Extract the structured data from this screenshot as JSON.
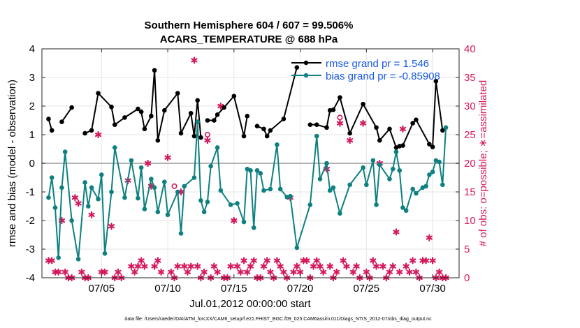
{
  "chart_data": {
    "type": "line",
    "title": "Southern Hemisphere 604 / 607 = 99.506%",
    "subtitle": "ACARS_TEMPERATURE @ 688 hPa",
    "xlabel": "Jul.01,2012 00:00:00 start",
    "ylabel": "rmse and bias (model - observation)",
    "y2label": "# of obs: o=possible; ∗=assimilated",
    "xlim": [
      0.5,
      32.0
    ],
    "ylim": [
      -4,
      4
    ],
    "y2lim": [
      0,
      40
    ],
    "xticks": [
      {
        "x": 5,
        "label": "07/05"
      },
      {
        "x": 10,
        "label": "07/10"
      },
      {
        "x": 15,
        "label": "07/15"
      },
      {
        "x": 20,
        "label": "07/20"
      },
      {
        "x": 25,
        "label": "07/25"
      },
      {
        "x": 30,
        "label": "07/30"
      }
    ],
    "yticks": [
      "-4",
      "-3",
      "-2",
      "-1",
      "0",
      "1",
      "2",
      "3",
      "4"
    ],
    "y2ticks": [
      "0",
      "5",
      "10",
      "15",
      "20",
      "25",
      "30",
      "35",
      "40"
    ],
    "zero_line": 0,
    "colors": {
      "rmse": "#000000",
      "bias": "#0e8080",
      "obs": "#d6195f",
      "legend_text": "#1a5ae6",
      "zero": "#b3b3b3"
    },
    "series": [
      {
        "name": "rmse",
        "legend": "rmse grand pr = 1.546",
        "points": [
          [
            1.0,
            1.55
          ],
          [
            1.25,
            1.15
          ],
          [
            1.75,
            null
          ],
          [
            2.0,
            1.45
          ],
          [
            2.75,
            1.95
          ],
          [
            3.0,
            null
          ],
          [
            3.75,
            1.05
          ],
          [
            4.25,
            1.15
          ],
          [
            4.75,
            2.45
          ],
          [
            5.75,
            1.97
          ],
          [
            6.0,
            1.35
          ],
          [
            6.75,
            1.6
          ],
          [
            7.75,
            1.9
          ],
          [
            8.0,
            1.8
          ],
          [
            8.25,
            1.2
          ],
          [
            8.75,
            1.65
          ],
          [
            9.0,
            3.25
          ],
          [
            9.25,
            0.8
          ],
          [
            9.75,
            1.85
          ],
          [
            10.75,
            2.45
          ],
          [
            11.0,
            1.05
          ],
          [
            11.75,
            1.75
          ],
          [
            12.0,
            0.95
          ],
          [
            12.25,
            2.2
          ],
          [
            12.5,
            0.9
          ],
          [
            12.75,
            null
          ],
          [
            13.0,
            1.5
          ],
          [
            13.5,
            1.5
          ],
          [
            13.75,
            1.7
          ],
          [
            14.25,
            1.95
          ],
          [
            15.0,
            2.35
          ],
          [
            15.75,
            0.95
          ],
          [
            16.0,
            1.65
          ],
          [
            16.25,
            null
          ],
          [
            16.75,
            1.3
          ],
          [
            17.25,
            1.2
          ],
          [
            17.5,
            0.95
          ],
          [
            17.75,
            1.15
          ],
          [
            18.75,
            1.55
          ],
          [
            19.75,
            3.35
          ],
          [
            20.0,
            null
          ],
          [
            20.75,
            1.35
          ],
          [
            21.25,
            1.35
          ],
          [
            22.0,
            1.25
          ],
          [
            22.25,
            1.85
          ],
          [
            22.5,
            1.87
          ],
          [
            23.0,
            2.3
          ],
          [
            23.75,
            1.05
          ],
          [
            24.75,
            2.07
          ],
          [
            25.75,
            1.25
          ],
          [
            26.0,
            0.8
          ],
          [
            26.75,
            1.2
          ],
          [
            27.25,
            0.55
          ],
          [
            27.5,
            0.6
          ],
          [
            27.75,
            0.62
          ],
          [
            28.5,
            1.4
          ],
          [
            28.75,
            1.52
          ],
          [
            29.75,
            0.67
          ],
          [
            30.0,
            0.57
          ],
          [
            30.25,
            2.87
          ],
          [
            30.75,
            1.15
          ],
          [
            31.0,
            null
          ]
        ]
      },
      {
        "name": "bias",
        "legend": "bias grand pr = -0.85908",
        "points": [
          [
            1.0,
            -1.2
          ],
          [
            1.25,
            -0.5
          ],
          [
            1.5,
            -1.55
          ],
          [
            1.75,
            -3.3
          ],
          [
            2.0,
            -0.85
          ],
          [
            2.25,
            0.4
          ],
          [
            2.75,
            -2.0
          ],
          [
            3.25,
            -3.35
          ],
          [
            3.75,
            -0.67
          ],
          [
            4.0,
            -1.5
          ],
          [
            4.25,
            -0.85
          ],
          [
            4.75,
            -1.25
          ],
          [
            5.0,
            -0.4
          ],
          [
            5.25,
            -3.15
          ],
          [
            5.75,
            -1.0
          ],
          [
            6.0,
            0.55
          ],
          [
            6.75,
            -1.2
          ],
          [
            7.25,
            0.1
          ],
          [
            7.75,
            -1.22
          ],
          [
            8.0,
            -0.15
          ],
          [
            8.25,
            -1.6
          ],
          [
            8.75,
            -0.55
          ],
          [
            9.0,
            -0.85
          ],
          [
            9.25,
            -1.7
          ],
          [
            9.75,
            -0.65
          ],
          [
            10.0,
            -1.8
          ],
          [
            10.75,
            -1.0
          ],
          [
            11.0,
            -2.45
          ],
          [
            11.25,
            -0.8
          ],
          [
            12.0,
            -0.5
          ],
          [
            12.25,
            1.45
          ],
          [
            12.5,
            -1.3
          ],
          [
            12.75,
            -1.7
          ],
          [
            13.0,
            -1.35
          ],
          [
            13.25,
            -0.1
          ],
          [
            13.75,
            0.55
          ],
          [
            14.0,
            -0.95
          ],
          [
            14.75,
            -1.45
          ],
          [
            15.25,
            -1.4
          ],
          [
            15.75,
            -2.05
          ],
          [
            16.0,
            -0.2
          ],
          [
            16.25,
            -0.25
          ],
          [
            16.5,
            -2.25
          ],
          [
            16.75,
            -0.25
          ],
          [
            17.0,
            -0.35
          ],
          [
            17.25,
            -0.95
          ],
          [
            17.75,
            -0.9
          ],
          [
            18.25,
            0.65
          ],
          [
            18.5,
            -0.9
          ],
          [
            19.0,
            -1.18
          ],
          [
            19.25,
            -1.15
          ],
          [
            19.75,
            -2.95
          ],
          [
            20.75,
            -1.45
          ],
          [
            21.25,
            0.95
          ],
          [
            21.5,
            -0.55
          ],
          [
            22.0,
            0.0
          ],
          [
            22.25,
            -0.95
          ],
          [
            22.5,
            -0.85
          ],
          [
            23.0,
            -1.75
          ],
          [
            23.75,
            -0.75
          ],
          [
            24.75,
            -0.15
          ],
          [
            25.0,
            -0.75
          ],
          [
            25.5,
            0.1
          ],
          [
            25.75,
            -1.45
          ],
          [
            26.0,
            -0.05
          ],
          [
            26.75,
            -0.55
          ],
          [
            27.0,
            -0.2
          ],
          [
            27.25,
            0.4
          ],
          [
            27.5,
            -0.25
          ],
          [
            27.75,
            -1.55
          ],
          [
            28.0,
            -1.65
          ],
          [
            28.5,
            -0.9
          ],
          [
            28.75,
            -1.05
          ],
          [
            29.25,
            -0.85
          ],
          [
            29.5,
            -0.8
          ],
          [
            29.75,
            -0.4
          ],
          [
            30.0,
            -0.3
          ],
          [
            30.25,
            0.1
          ],
          [
            30.5,
            0.05
          ],
          [
            30.75,
            -0.75
          ],
          [
            31.0,
            1.25
          ]
        ]
      }
    ],
    "obs_assimilated": [
      [
        1,
        3
      ],
      [
        1.25,
        3
      ],
      [
        1.5,
        1
      ],
      [
        1.75,
        1
      ],
      [
        2.0,
        10
      ],
      [
        2.25,
        1
      ],
      [
        2.5,
        0
      ],
      [
        2.75,
        0
      ],
      [
        3.0,
        14
      ],
      [
        3.25,
        13
      ],
      [
        3.5,
        1
      ],
      [
        3.75,
        0
      ],
      [
        4.0,
        0
      ],
      [
        4.25,
        11
      ],
      [
        4.75,
        25
      ],
      [
        5.0,
        1
      ],
      [
        5.25,
        1
      ],
      [
        5.75,
        9
      ],
      [
        6.0,
        0
      ],
      [
        6.25,
        1
      ],
      [
        6.5,
        0
      ],
      [
        7.0,
        17
      ],
      [
        7.25,
        2
      ],
      [
        7.5,
        1
      ],
      [
        7.75,
        2
      ],
      [
        8.0,
        3
      ],
      [
        8.25,
        2
      ],
      [
        8.5,
        20
      ],
      [
        8.75,
        16
      ],
      [
        9.0,
        2
      ],
      [
        9.25,
        3
      ],
      [
        9.5,
        1
      ],
      [
        10.0,
        21
      ],
      [
        10.25,
        1
      ],
      [
        10.5,
        0
      ],
      [
        10.75,
        2
      ],
      [
        11.0,
        15
      ],
      [
        11.25,
        2
      ],
      [
        11.5,
        1
      ],
      [
        11.75,
        2
      ],
      [
        12.0,
        38
      ],
      [
        12.25,
        2
      ],
      [
        12.5,
        0
      ],
      [
        12.75,
        1
      ],
      [
        13.0,
        24
      ],
      [
        13.25,
        0
      ],
      [
        13.5,
        2
      ],
      [
        13.75,
        1
      ],
      [
        14.0,
        30
      ],
      [
        14.25,
        0
      ],
      [
        14.5,
        0
      ],
      [
        14.75,
        2
      ],
      [
        15.0,
        10
      ],
      [
        15.25,
        2
      ],
      [
        15.5,
        1
      ],
      [
        15.75,
        3
      ],
      [
        16.0,
        1
      ],
      [
        16.25,
        2
      ],
      [
        16.5,
        3
      ],
      [
        16.75,
        0
      ],
      [
        17.0,
        0
      ],
      [
        17.25,
        2
      ],
      [
        17.5,
        3
      ],
      [
        17.75,
        1
      ],
      [
        18.0,
        0
      ],
      [
        18.25,
        3
      ],
      [
        18.5,
        2
      ],
      [
        18.75,
        1
      ],
      [
        19.0,
        0
      ],
      [
        19.25,
        14
      ],
      [
        19.5,
        1
      ],
      [
        19.75,
        2
      ],
      [
        20.0,
        1
      ],
      [
        20.25,
        3
      ],
      [
        20.5,
        3
      ],
      [
        20.75,
        0
      ],
      [
        21.0,
        2
      ],
      [
        21.25,
        3
      ],
      [
        21.5,
        2
      ],
      [
        21.75,
        1
      ],
      [
        22.0,
        19
      ],
      [
        22.25,
        2
      ],
      [
        22.5,
        0
      ],
      [
        22.75,
        1
      ],
      [
        23.0,
        27
      ],
      [
        23.25,
        3
      ],
      [
        23.5,
        2
      ],
      [
        23.75,
        24
      ],
      [
        24.0,
        1
      ],
      [
        24.25,
        2
      ],
      [
        24.5,
        0
      ],
      [
        24.75,
        27
      ],
      [
        25.0,
        1
      ],
      [
        25.25,
        0
      ],
      [
        25.5,
        3
      ],
      [
        25.75,
        2
      ],
      [
        26.0,
        20
      ],
      [
        26.25,
        2
      ],
      [
        26.5,
        0
      ],
      [
        26.75,
        1
      ],
      [
        27.0,
        2
      ],
      [
        27.25,
        8
      ],
      [
        27.5,
        1
      ],
      [
        27.75,
        26
      ],
      [
        28.0,
        2
      ],
      [
        28.25,
        1
      ],
      [
        28.5,
        3
      ],
      [
        28.75,
        1
      ],
      [
        29.0,
        0
      ],
      [
        29.25,
        3
      ],
      [
        29.5,
        3
      ],
      [
        29.75,
        7
      ],
      [
        30.0,
        3
      ],
      [
        30.25,
        0
      ],
      [
        30.5,
        1
      ],
      [
        30.75,
        0
      ],
      [
        31.0,
        0
      ]
    ],
    "obs_possible": [
      [
        10.5,
        16
      ],
      [
        13.0,
        25
      ],
      [
        23.0,
        28
      ]
    ],
    "footer": "data file: /Users/raeder/DAI/ATM_forcXX/CAM6_setup/f.e21.FHIST_BGC.f09_025.CAM6assim.011/Diags_NTrS_2012-07/obs_diag_output.nc"
  }
}
